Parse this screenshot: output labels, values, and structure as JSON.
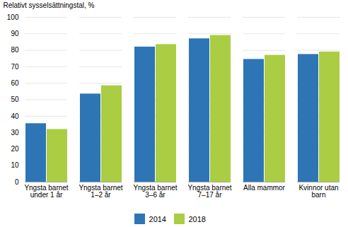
{
  "chart_data": {
    "type": "bar",
    "categories": [
      "Yngsta barnet\nunder 1 år",
      "Yngsta barnet\n1–2 år",
      "Yngsta barnet\n3–6 år",
      "Yngsta barnet\n7–17 år",
      "Alla mammor",
      "Kvinnor utan\nbarn"
    ],
    "series": [
      {
        "name": "2014",
        "color": "#2E75B6",
        "values": [
          35.5,
          53.5,
          82.0,
          87.0,
          74.5,
          77.5
        ]
      },
      {
        "name": "2018",
        "color": "#AACD44",
        "values": [
          32.0,
          58.5,
          83.5,
          89.0,
          77.0,
          79.0
        ]
      }
    ],
    "ylabel": "Relativt sysselsättningstal, %",
    "ylim": [
      0,
      100
    ],
    "yticks": [
      0,
      10,
      20,
      30,
      40,
      50,
      60,
      70,
      80,
      90,
      100
    ],
    "grid": true,
    "legend": "bottom"
  }
}
